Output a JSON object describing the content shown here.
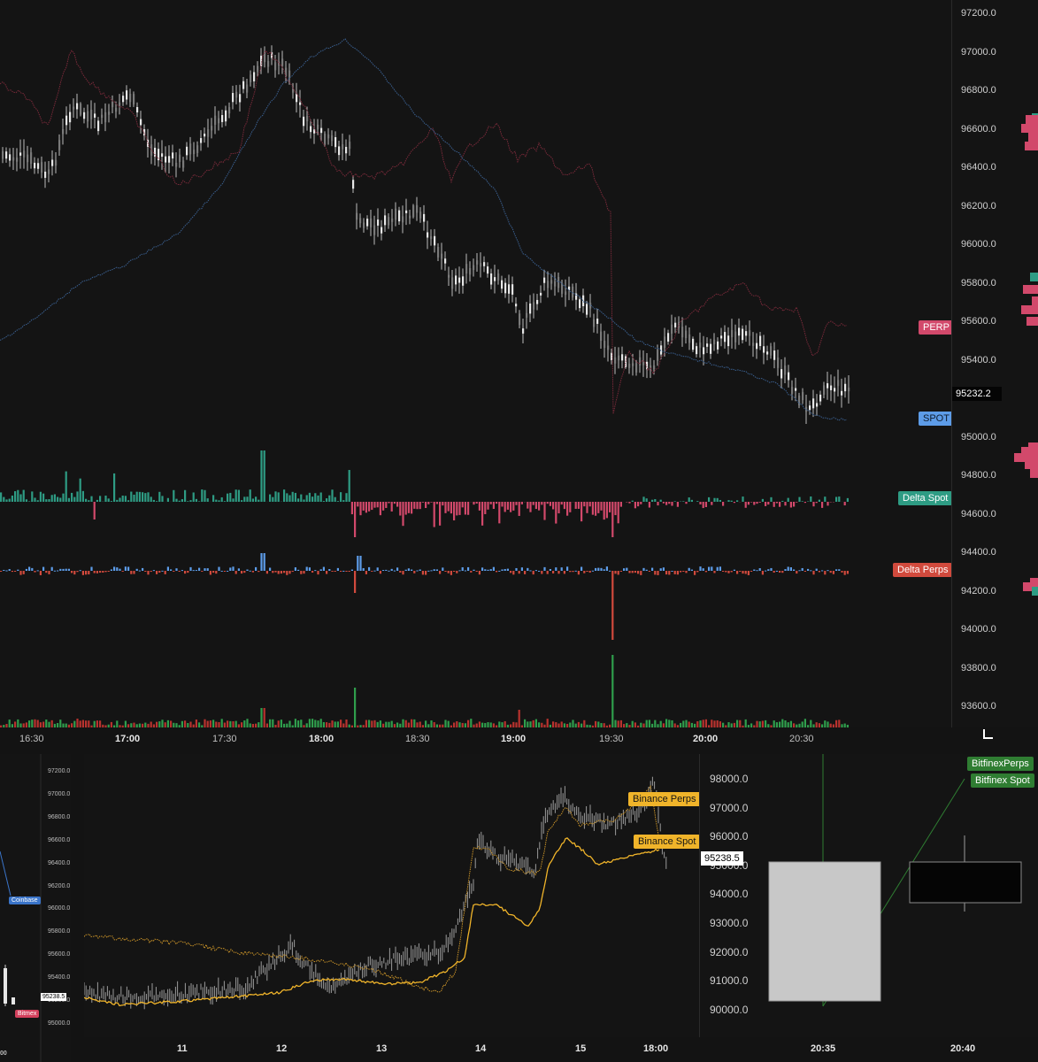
{
  "main_chart": {
    "price_axis": [
      "97200.0",
      "97000.0",
      "96800.0",
      "96600.0",
      "96400.0",
      "96200.0",
      "96000.0",
      "95800.0",
      "95600.0",
      "95400.0",
      "95200.0",
      "95000.0",
      "94800.0",
      "94600.0",
      "94400.0",
      "94200.0",
      "94000.0",
      "93800.0",
      "93600.0"
    ],
    "last_price": "95232.2",
    "time_axis": [
      {
        "label": "16:30",
        "bold": false
      },
      {
        "label": "17:00",
        "bold": true
      },
      {
        "label": "17:30",
        "bold": false
      },
      {
        "label": "18:00",
        "bold": true
      },
      {
        "label": "18:30",
        "bold": false
      },
      {
        "label": "19:00",
        "bold": true
      },
      {
        "label": "19:30",
        "bold": false
      },
      {
        "label": "20:00",
        "bold": true
      },
      {
        "label": "20:30",
        "bold": false
      }
    ],
    "tags": {
      "perp": "PERP",
      "spot": "SPOT",
      "delta_spot": "Delta Spot",
      "delta_perps": "Delta Perps"
    },
    "colors": {
      "perp": "#d2496b",
      "spot": "#5d9ce8",
      "delta_spot": "#2e9c84",
      "delta_perps": "#d14a3d",
      "candle": "#d8d8d8"
    }
  },
  "mini_left": {
    "price_axis": [
      "97200.0",
      "97000.0",
      "96800.0",
      "96600.0",
      "96400.0",
      "96200.0",
      "96000.0",
      "95800.0",
      "95600.0",
      "95400.0",
      "95200.0",
      "95000.0"
    ],
    "last_price": "95238.5",
    "tags": {
      "coinbase": "Coinbase",
      "bitmex": "Bitmex"
    },
    "cut_label": "00"
  },
  "bottom_chart": {
    "price_axis": [
      "98000.0",
      "97000.0",
      "96000.0",
      "95000.0",
      "94000.0",
      "93000.0",
      "92000.0",
      "91000.0",
      "90000.0"
    ],
    "last_price": "95238.5",
    "time_axis": [
      "11",
      "12",
      "13",
      "14",
      "15",
      "18:00"
    ],
    "tags": {
      "binance_perps": "Binance Perps",
      "binance_spot": "Binance Spot"
    },
    "colors": {
      "binance": "#f0b42a"
    }
  },
  "bottom_right": {
    "time_axis": [
      "20:35",
      "20:40"
    ],
    "tags": {
      "bitfinex_perps": "BitfinexPerps",
      "bitfinex_spot": "Bitfinex Spot"
    },
    "colors": {
      "bitfinex": "#2f7d32"
    }
  }
}
